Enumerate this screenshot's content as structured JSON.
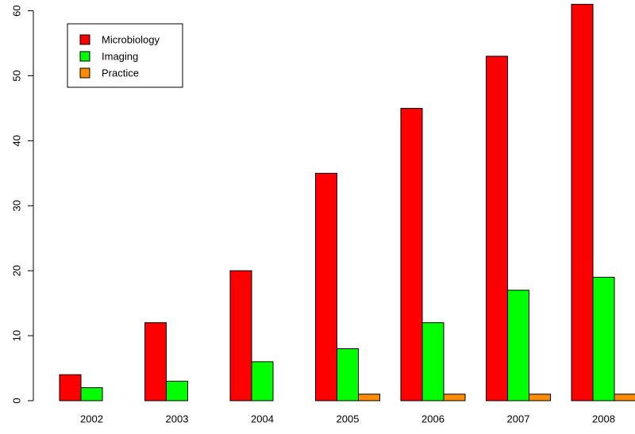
{
  "chart_data": {
    "type": "bar",
    "title": "",
    "xlabel": "",
    "ylabel": "",
    "categories": [
      "2002",
      "2003",
      "2004",
      "2005",
      "2006",
      "2007",
      "2008"
    ],
    "series": [
      {
        "name": "Microbiology",
        "color": "#ff0000",
        "values": [
          4,
          12,
          20,
          35,
          45,
          53,
          61
        ]
      },
      {
        "name": "Imaging",
        "color": "#00ff00",
        "values": [
          2,
          3,
          6,
          8,
          12,
          17,
          19
        ]
      },
      {
        "name": "Practice",
        "color": "#ff8c00",
        "values": [
          0,
          0,
          0,
          1,
          1,
          1,
          1
        ]
      }
    ],
    "ylim": [
      0,
      61
    ],
    "yticks": [
      0,
      10,
      20,
      30,
      40,
      50,
      60
    ],
    "grid": false,
    "legend": "top-left"
  }
}
